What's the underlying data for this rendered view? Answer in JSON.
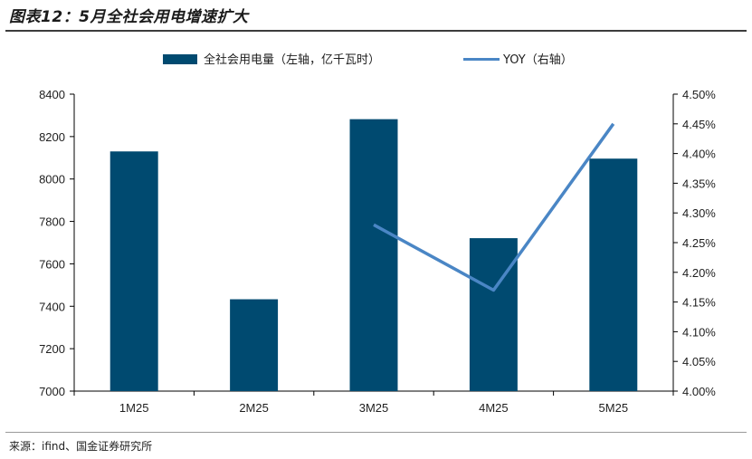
{
  "title": "图表12：5月全社会用电增速扩大",
  "source": "来源：ifind、国金证券研究所",
  "colors": {
    "bar": "#004a70",
    "line": "#4a86c5",
    "axis": "#000000",
    "text": "#1e1e1e"
  },
  "chart_data": {
    "type": "bar",
    "categories": [
      "1M25",
      "2M25",
      "3M25",
      "4M25",
      "5M25"
    ],
    "series": [
      {
        "name": "全社会用电量（左轴，亿千瓦时）",
        "type": "bar",
        "axis": "left",
        "values": [
          8130,
          7433,
          8282,
          7721,
          8096
        ]
      },
      {
        "name": "YOY（右轴）",
        "type": "line",
        "axis": "right",
        "values": [
          null,
          null,
          4.28,
          4.17,
          4.45
        ]
      }
    ],
    "ylim_left": [
      7000,
      8400
    ],
    "yticks_left": [
      "8400",
      "8200",
      "8000",
      "7800",
      "7600",
      "7400",
      "7200",
      "7000"
    ],
    "ylim_right": [
      4.0,
      4.5
    ],
    "yticks_right": [
      "4.50%",
      "4.45%",
      "4.40%",
      "4.35%",
      "4.30%",
      "4.25%",
      "4.20%",
      "4.15%",
      "4.10%",
      "4.05%",
      "4.00%"
    ],
    "legend_position": "top",
    "grid": false
  }
}
